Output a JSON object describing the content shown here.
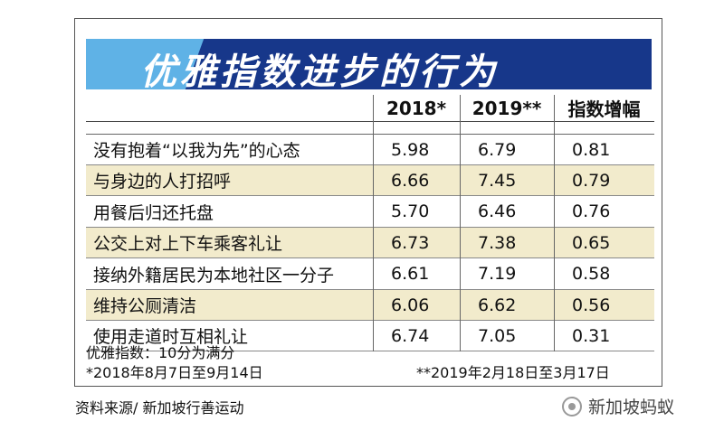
{
  "title": "优雅指数进步的行为",
  "table": {
    "columns": [
      "2018*",
      "2019**",
      "指数增幅"
    ],
    "rows": [
      [
        "没有抱着“以我为先”的心态",
        "5.98",
        "6.79",
        "0.81"
      ],
      [
        "与身边的人打招呼",
        "6.66",
        "7.45",
        "0.79"
      ],
      [
        "用餐后归还托盘",
        "5.70",
        "6.46",
        "0.76"
      ],
      [
        "公交上对上下车乘客礼让",
        "6.73",
        "7.38",
        "0.65"
      ],
      [
        "接纳外籍居民为本地社区一分子",
        "6.61",
        "7.19",
        "0.58"
      ],
      [
        "维持公厕清洁",
        "6.06",
        "6.62",
        "0.56"
      ],
      [
        "使用走道时互相礼让",
        "6.74",
        "7.05",
        "0.31"
      ]
    ]
  },
  "notes": [
    "优雅指数：10分为满分",
    "*2018年8月7日至9月14日",
    "**2019年2月18日至3月17日"
  ],
  "source": "资料来源/ 新加坡行善运动",
  "watermark": "新加坡蚂蚁"
}
